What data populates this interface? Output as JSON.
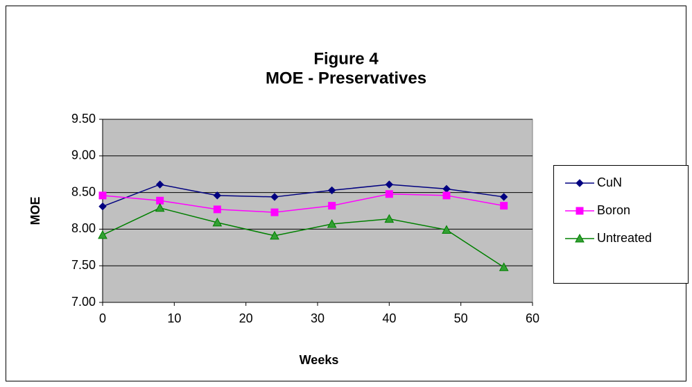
{
  "chart_data": {
    "type": "line",
    "title": "Figure 4",
    "subtitle": "MOE - Preservatives",
    "x_label": "Weeks",
    "y_label": "MOE",
    "x": [
      0,
      8,
      16,
      24,
      32,
      40,
      48,
      56
    ],
    "series": [
      {
        "name": "CuN",
        "color": "#000080",
        "marker": "diamond",
        "values": [
          8.31,
          8.61,
          8.46,
          8.44,
          8.53,
          8.61,
          8.55,
          8.44
        ]
      },
      {
        "name": "Boron",
        "color": "#ff00ff",
        "marker": "square",
        "values": [
          8.46,
          8.39,
          8.27,
          8.23,
          8.32,
          8.48,
          8.46,
          8.32
        ]
      },
      {
        "name": "Untreated",
        "color": "#008000",
        "marker": "triangle",
        "values": [
          7.92,
          8.29,
          8.09,
          7.91,
          8.07,
          8.14,
          7.99,
          7.48
        ]
      }
    ],
    "xlim": [
      0,
      60
    ],
    "xticks": [
      0,
      10,
      20,
      30,
      40,
      50,
      60
    ],
    "ylim": [
      7,
      9.5
    ],
    "yticks": [
      {
        "value": 7,
        "label": "7.00"
      },
      {
        "value": 7.5,
        "label": "7.50"
      },
      {
        "value": 8,
        "label": "8.00"
      },
      {
        "value": 8.5,
        "label": "8.50"
      },
      {
        "value": 9,
        "label": "9.00"
      },
      {
        "value": 9.5,
        "label": "9.50"
      }
    ],
    "grid": true,
    "plot_background": "#c0c0c0",
    "legend": "right"
  }
}
